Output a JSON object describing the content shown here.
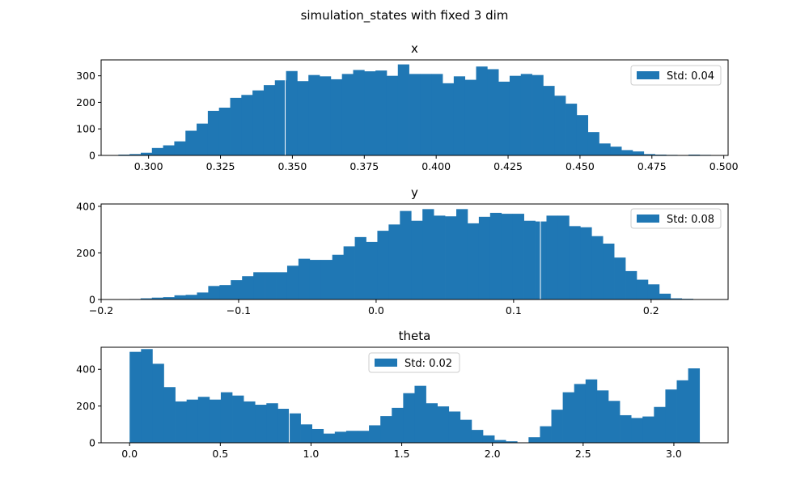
{
  "figure": {
    "suptitle": "simulation_states with fixed 3 dim",
    "bar_color": "#1f77b4"
  },
  "chart_data": [
    {
      "type": "bar",
      "subtype": "histogram",
      "title": "x",
      "xlabel": "",
      "ylabel": "",
      "xlim": [
        0.2835,
        0.5015
      ],
      "ylim": [
        0,
        360
      ],
      "xticks": [
        0.3,
        0.325,
        0.35,
        0.375,
        0.4,
        0.425,
        0.45,
        0.475,
        0.5
      ],
      "xtick_labels": [
        "0.300",
        "0.325",
        "0.350",
        "0.375",
        "0.400",
        "0.425",
        "0.450",
        "0.475",
        "0.500"
      ],
      "yticks": [
        0,
        100,
        200,
        300
      ],
      "ytick_labels": [
        "0",
        "100",
        "200",
        "300"
      ],
      "bin_start": 0.2895,
      "bin_end": 0.4955,
      "counts": [
        3,
        5,
        10,
        28,
        38,
        53,
        93,
        120,
        168,
        180,
        217,
        228,
        245,
        265,
        283,
        318,
        280,
        303,
        298,
        287,
        307,
        322,
        317,
        320,
        300,
        343,
        307,
        307,
        307,
        272,
        298,
        285,
        335,
        325,
        278,
        300,
        307,
        303,
        262,
        225,
        195,
        152,
        88,
        45,
        33,
        20,
        15,
        5,
        3,
        2,
        0,
        3,
        2
      ],
      "gap_at": 0.3475,
      "legend": {
        "label": "Std: 0.04",
        "placement": "upper right"
      },
      "grid": false
    },
    {
      "type": "bar",
      "subtype": "histogram",
      "title": "y",
      "xlabel": "",
      "ylabel": "",
      "xlim": [
        -0.2,
        0.256
      ],
      "ylim": [
        0,
        410
      ],
      "xticks": [
        -0.2,
        -0.1,
        0.0,
        0.1,
        0.2
      ],
      "xtick_labels": [
        "−0.2",
        "−0.1",
        "0.0",
        "0.1",
        "0.2"
      ],
      "yticks": [
        0,
        200,
        400
      ],
      "ytick_labels": [
        "0",
        "200",
        "400"
      ],
      "bin_start": -0.1795,
      "bin_end": 0.2305,
      "counts": [
        2,
        5,
        8,
        10,
        18,
        20,
        30,
        58,
        62,
        83,
        100,
        117,
        117,
        117,
        145,
        175,
        170,
        170,
        192,
        228,
        268,
        247,
        295,
        322,
        380,
        338,
        388,
        360,
        357,
        388,
        327,
        355,
        372,
        368,
        368,
        338,
        335,
        360,
        360,
        315,
        310,
        272,
        240,
        180,
        122,
        85,
        65,
        25,
        5,
        3
      ],
      "gap_at": 0.1195,
      "legend": {
        "label": "Std: 0.08",
        "placement": "upper right"
      },
      "grid": false
    },
    {
      "type": "bar",
      "subtype": "histogram",
      "title": "theta",
      "xlabel": "",
      "ylabel": "",
      "xlim": [
        -0.157,
        3.299
      ],
      "ylim": [
        0,
        520
      ],
      "xticks": [
        0.0,
        0.5,
        1.0,
        1.5,
        2.0,
        2.5,
        3.0
      ],
      "xtick_labels": [
        "0.0",
        "0.5",
        "1.0",
        "1.5",
        "2.0",
        "2.5",
        "3.0"
      ],
      "yticks": [
        0,
        200,
        400
      ],
      "ytick_labels": [
        "0",
        "200",
        "400"
      ],
      "bin_start": 0.0,
      "bin_end": 3.1416,
      "counts": [
        495,
        510,
        430,
        303,
        225,
        235,
        250,
        235,
        275,
        257,
        225,
        207,
        215,
        185,
        160,
        100,
        75,
        50,
        60,
        65,
        65,
        95,
        145,
        190,
        270,
        310,
        215,
        198,
        170,
        125,
        70,
        40,
        15,
        8,
        0,
        30,
        90,
        180,
        275,
        320,
        345,
        285,
        228,
        150,
        135,
        143,
        195,
        290,
        340,
        405
      ],
      "gap_at": 0.88,
      "legend": {
        "label": "Std: 0.02",
        "placement": "upper center"
      },
      "grid": false
    }
  ]
}
